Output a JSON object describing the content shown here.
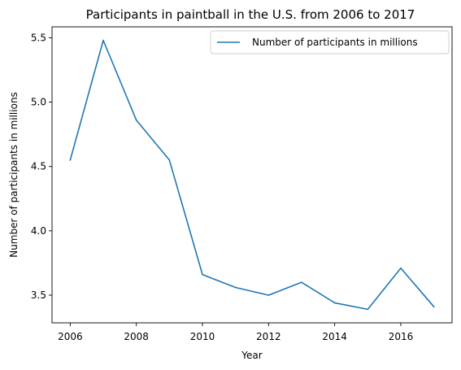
{
  "chart_data": {
    "type": "line",
    "title": "Participants in paintball in the U.S. from 2006 to 2017",
    "xlabel": "Year",
    "ylabel": "Number of participants in millions",
    "xlim": [
      2005.45,
      2017.55
    ],
    "ylim": [
      3.285,
      5.585
    ],
    "xticks": [
      2006,
      2008,
      2010,
      2012,
      2014,
      2016
    ],
    "yticks": [
      3.5,
      4.0,
      4.5,
      5.0,
      5.5
    ],
    "ytick_labels": [
      "3.5",
      "4.0",
      "4.5",
      "5.0",
      "5.5"
    ],
    "legend_position": "top-right",
    "grid": false,
    "series": [
      {
        "name": "Number of participants in millions",
        "color": "#1f77b4",
        "x": [
          2006,
          2007,
          2008,
          2009,
          2010,
          2011,
          2012,
          2013,
          2014,
          2015,
          2016,
          2017
        ],
        "values": [
          4.55,
          5.48,
          4.86,
          4.55,
          3.66,
          3.56,
          3.5,
          3.6,
          3.44,
          3.39,
          3.71,
          3.41
        ]
      }
    ]
  }
}
